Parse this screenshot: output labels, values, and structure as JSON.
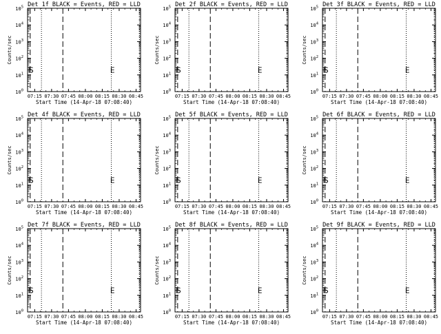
{
  "figure": {
    "background": "#ffffff",
    "axis_color": "#000000",
    "line_color": "#000000"
  },
  "panels_template": {
    "xlabel": "Start Time (14-Apr-18 07:08:40)",
    "ylabel": "Counts/sec",
    "xticks": [
      "07:15",
      "07:30",
      "07:45",
      "08:00",
      "08:15",
      "08:30",
      "08:45"
    ],
    "yticks": [
      {
        "base": "10",
        "exp": "0"
      },
      {
        "base": "10",
        "exp": "1"
      },
      {
        "base": "10",
        "exp": "2"
      },
      {
        "base": "10",
        "exp": "3"
      },
      {
        "base": "10",
        "exp": "4"
      },
      {
        "base": "10",
        "exp": "5"
      }
    ]
  },
  "chart_data": [
    {
      "type": "line",
      "title": "Det 1f BLACK = Events, RED = LLD",
      "xlabel": "Start Time (14-Apr-18 07:08:40)",
      "ylabel": "Counts/sec",
      "y_scale": "log",
      "ylim": [
        1,
        100000
      ],
      "xlim": [
        "07:08:40",
        "08:49:00"
      ],
      "markers": [
        {
          "label": "E",
          "time": "07:11"
        },
        {
          "label": "S",
          "time": "07:12"
        },
        {
          "label": "E",
          "time": "08:24"
        }
      ],
      "dashed_lines": [
        "07:11",
        "07:40"
      ],
      "dotted_lines": [
        "07:21",
        "08:23",
        "08:48"
      ],
      "series": []
    },
    {
      "type": "line",
      "title": "Det 2f BLACK = Events, RED = LLD",
      "xlabel": "Start Time (14-Apr-18 07:08:40)",
      "ylabel": "Counts/sec",
      "y_scale": "log",
      "ylim": [
        1,
        100000
      ],
      "xlim": [
        "07:08:40",
        "08:49:00"
      ],
      "markers": [
        {
          "label": "E",
          "time": "07:11"
        },
        {
          "label": "S",
          "time": "07:12"
        },
        {
          "label": "E",
          "time": "08:24"
        }
      ],
      "dashed_lines": [
        "07:11",
        "07:40"
      ],
      "dotted_lines": [
        "07:21",
        "08:23",
        "08:48"
      ],
      "series": []
    },
    {
      "type": "line",
      "title": "Det 3f BLACK = Events, RED = LLD",
      "xlabel": "Start Time (14-Apr-18 07:08:40)",
      "ylabel": "Counts/sec",
      "y_scale": "log",
      "ylim": [
        1,
        100000
      ],
      "xlim": [
        "07:08:40",
        "08:49:00"
      ],
      "markers": [
        {
          "label": "E",
          "time": "07:11"
        },
        {
          "label": "S",
          "time": "07:12"
        },
        {
          "label": "E",
          "time": "08:24"
        }
      ],
      "dashed_lines": [
        "07:11",
        "07:40"
      ],
      "dotted_lines": [
        "07:21",
        "08:23",
        "08:48"
      ],
      "series": []
    },
    {
      "type": "line",
      "title": "Det 4f BLACK = Events, RED = LLD",
      "xlabel": "Start Time (14-Apr-18 07:08:40)",
      "ylabel": "Counts/sec",
      "y_scale": "log",
      "ylim": [
        1,
        100000
      ],
      "xlim": [
        "07:08:40",
        "08:49:00"
      ],
      "markers": [
        {
          "label": "E",
          "time": "07:11"
        },
        {
          "label": "S",
          "time": "07:12"
        },
        {
          "label": "E",
          "time": "08:24"
        }
      ],
      "dashed_lines": [
        "07:11",
        "07:40"
      ],
      "dotted_lines": [
        "07:21",
        "08:23",
        "08:48"
      ],
      "series": []
    },
    {
      "type": "line",
      "title": "Det 5f BLACK = Events, RED = LLD",
      "xlabel": "Start Time (14-Apr-18 07:08:40)",
      "ylabel": "Counts/sec",
      "y_scale": "log",
      "ylim": [
        1,
        100000
      ],
      "xlim": [
        "07:08:40",
        "08:49:00"
      ],
      "markers": [
        {
          "label": "E",
          "time": "07:11"
        },
        {
          "label": "S",
          "time": "07:12"
        },
        {
          "label": "E",
          "time": "08:24"
        }
      ],
      "dashed_lines": [
        "07:11",
        "07:40"
      ],
      "dotted_lines": [
        "07:21",
        "08:23",
        "08:48"
      ],
      "series": []
    },
    {
      "type": "line",
      "title": "Det 6f BLACK = Events, RED = LLD",
      "xlabel": "Start Time (14-Apr-18 07:08:40)",
      "ylabel": "Counts/sec",
      "y_scale": "log",
      "ylim": [
        1,
        100000
      ],
      "xlim": [
        "07:08:40",
        "08:49:00"
      ],
      "markers": [
        {
          "label": "E",
          "time": "07:11"
        },
        {
          "label": "S",
          "time": "07:12"
        },
        {
          "label": "E",
          "time": "08:24"
        }
      ],
      "dashed_lines": [
        "07:11",
        "07:40"
      ],
      "dotted_lines": [
        "07:21",
        "08:23",
        "08:48"
      ],
      "series": []
    },
    {
      "type": "line",
      "title": "Det 7f BLACK = Events, RED = LLD",
      "xlabel": "Start Time (14-Apr-18 07:08:40)",
      "ylabel": "Counts/sec",
      "y_scale": "log",
      "ylim": [
        1,
        100000
      ],
      "xlim": [
        "07:08:40",
        "08:49:00"
      ],
      "markers": [
        {
          "label": "E",
          "time": "07:11"
        },
        {
          "label": "S",
          "time": "07:12"
        },
        {
          "label": "E",
          "time": "08:24"
        }
      ],
      "dashed_lines": [
        "07:11",
        "07:40"
      ],
      "dotted_lines": [
        "07:21",
        "08:23",
        "08:48"
      ],
      "series": []
    },
    {
      "type": "line",
      "title": "Det 8f BLACK = Events, RED = LLD",
      "xlabel": "Start Time (14-Apr-18 07:08:40)",
      "ylabel": "Counts/sec",
      "y_scale": "log",
      "ylim": [
        1,
        100000
      ],
      "xlim": [
        "07:08:40",
        "08:49:00"
      ],
      "markers": [
        {
          "label": "E",
          "time": "07:11"
        },
        {
          "label": "S",
          "time": "07:12"
        },
        {
          "label": "E",
          "time": "08:24"
        }
      ],
      "dashed_lines": [
        "07:11",
        "07:40"
      ],
      "dotted_lines": [
        "07:21",
        "08:23",
        "08:48"
      ],
      "series": []
    },
    {
      "type": "line",
      "title": "Det 9f BLACK = Events, RED = LLD",
      "xlabel": "Start Time (14-Apr-18 07:08:40)",
      "ylabel": "Counts/sec",
      "y_scale": "log",
      "ylim": [
        1,
        100000
      ],
      "xlim": [
        "07:08:40",
        "08:49:00"
      ],
      "markers": [
        {
          "label": "E",
          "time": "07:11"
        },
        {
          "label": "S",
          "time": "07:12"
        },
        {
          "label": "E",
          "time": "08:24"
        }
      ],
      "dashed_lines": [
        "07:11",
        "07:40"
      ],
      "dotted_lines": [
        "07:21",
        "08:23",
        "08:48"
      ],
      "series": []
    }
  ]
}
